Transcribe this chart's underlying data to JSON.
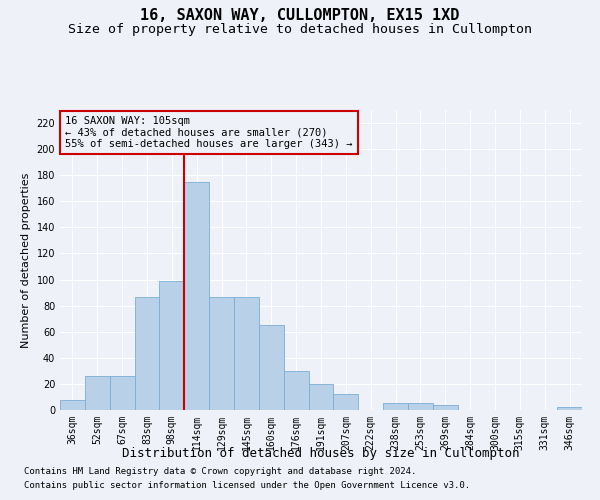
{
  "title": "16, SAXON WAY, CULLOMPTON, EX15 1XD",
  "subtitle": "Size of property relative to detached houses in Cullompton",
  "xlabel": "Distribution of detached houses by size in Cullompton",
  "ylabel": "Number of detached properties",
  "categories": [
    "36sqm",
    "52sqm",
    "67sqm",
    "83sqm",
    "98sqm",
    "114sqm",
    "129sqm",
    "145sqm",
    "160sqm",
    "176sqm",
    "191sqm",
    "207sqm",
    "222sqm",
    "238sqm",
    "253sqm",
    "269sqm",
    "284sqm",
    "300sqm",
    "315sqm",
    "331sqm",
    "346sqm"
  ],
  "values": [
    8,
    26,
    26,
    87,
    99,
    175,
    87,
    87,
    65,
    30,
    20,
    12,
    0,
    5,
    5,
    4,
    0,
    0,
    0,
    0,
    2
  ],
  "bar_color": "#b8d0e8",
  "bar_edge_color": "#7aadd4",
  "vline_x_index": 5,
  "vline_color": "#cc0000",
  "ylim_max": 230,
  "yticks": [
    0,
    20,
    40,
    60,
    80,
    100,
    120,
    140,
    160,
    180,
    200,
    220
  ],
  "annotation_title": "16 SAXON WAY: 105sqm",
  "annotation_line1": "← 43% of detached houses are smaller (270)",
  "annotation_line2": "55% of semi-detached houses are larger (343) →",
  "annotation_box_color": "#cc0000",
  "footnote1": "Contains HM Land Registry data © Crown copyright and database right 2024.",
  "footnote2": "Contains public sector information licensed under the Open Government Licence v3.0.",
  "background_color": "#eef2f8",
  "title_fontsize": 11,
  "subtitle_fontsize": 9.5,
  "xlabel_fontsize": 9,
  "ylabel_fontsize": 8,
  "tick_fontsize": 7,
  "annotation_fontsize": 7.5,
  "footnote_fontsize": 6.5
}
